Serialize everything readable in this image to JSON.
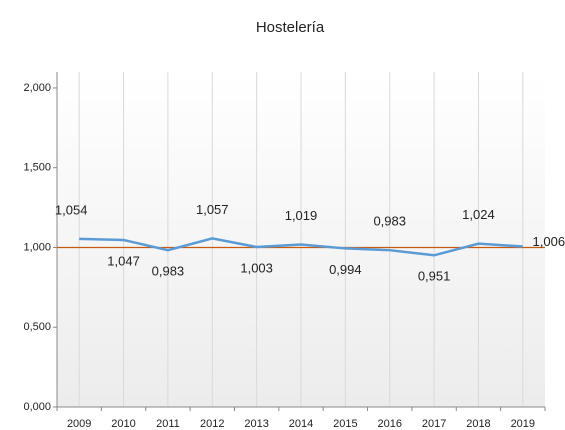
{
  "chart_data": {
    "type": "line",
    "title": "Hostelería",
    "categories": [
      "2009",
      "2010",
      "2011",
      "2012",
      "2013",
      "2014",
      "2015",
      "2016",
      "2017",
      "2018",
      "2019"
    ],
    "series": [
      {
        "name": "Hostelería",
        "color": "#5b9bd5",
        "values": [
          1.054,
          1.047,
          0.983,
          1.057,
          1.003,
          1.019,
          0.994,
          0.983,
          0.951,
          1.024,
          1.006
        ],
        "value_labels": [
          "1,054",
          "1,047",
          "0,983",
          "1,057",
          "1,003",
          "1,019",
          "0,994",
          "0,983",
          "0,951",
          "1,024",
          "1,006"
        ]
      }
    ],
    "reference_line": 1.0,
    "reference_color": "#c55a11",
    "ylim": [
      0,
      2.1
    ],
    "yticks": [
      {
        "value": 0,
        "label": "0,000"
      },
      {
        "value": 0.5,
        "label": "0,500"
      },
      {
        "value": 1.0,
        "label": "1,000"
      },
      {
        "value": 1.5,
        "label": "1,500"
      },
      {
        "value": 2.0,
        "label": "2,000"
      }
    ],
    "grid": true
  }
}
